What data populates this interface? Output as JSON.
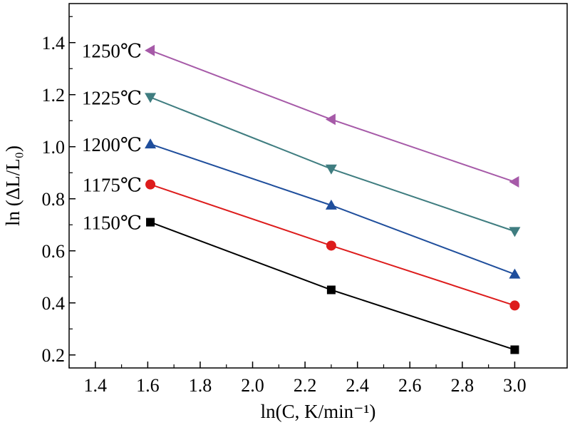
{
  "chart_data": {
    "type": "line",
    "xlabel": "ln(C, K/min⁻¹)",
    "ylabel": "ln (ΔL/L₀)",
    "xlim": [
      1.3,
      3.2
    ],
    "ylim": [
      0.15,
      1.55
    ],
    "xticks": [
      "1.4",
      "1.6",
      "1.8",
      "2.0",
      "2.2",
      "2.4",
      "2.6",
      "2.8",
      "3.0"
    ],
    "yticks": [
      "0.2",
      "0.4",
      "0.6",
      "0.8",
      "1.0",
      "1.2",
      "1.4"
    ],
    "grid": false,
    "x": [
      1.61,
      2.3,
      3.0
    ],
    "series": [
      {
        "name": "1150℃",
        "marker": "square",
        "color": "#000000",
        "values": [
          0.71,
          0.45,
          0.22
        ]
      },
      {
        "name": "1175℃",
        "marker": "circle",
        "color": "#dd1c1c",
        "values": [
          0.855,
          0.62,
          0.39
        ]
      },
      {
        "name": "1200℃",
        "marker": "triangle-up",
        "color": "#1f4e9c",
        "values": [
          1.01,
          0.775,
          0.51
        ]
      },
      {
        "name": "1225℃",
        "marker": "triangle-down",
        "color": "#3f7d80",
        "values": [
          1.19,
          0.915,
          0.675
        ]
      },
      {
        "name": "1250℃",
        "marker": "triangle-left",
        "color": "#a65aa8",
        "values": [
          1.37,
          1.105,
          0.865
        ]
      }
    ]
  }
}
